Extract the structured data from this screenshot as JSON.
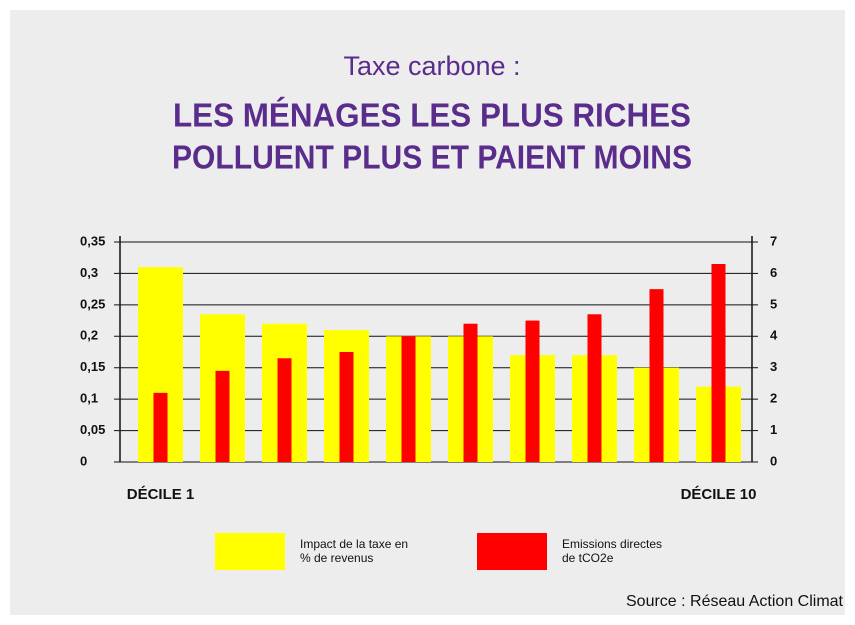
{
  "chart_data": {
    "type": "bar",
    "title": "Taxe carbone :",
    "subtitle": [
      "LES MÉNAGES LES PLUS RICHES",
      "POLLUENT PLUS ET PAIENT MOINS"
    ],
    "categories": [
      "DÉCILE 1",
      null,
      null,
      null,
      null,
      null,
      null,
      null,
      null,
      "DÉCILE 10"
    ],
    "series": [
      {
        "name": "Impact de la taxe en % de revenus",
        "color": "#ffff00",
        "values": [
          0.31,
          0.235,
          0.22,
          0.21,
          0.2,
          0.2,
          0.17,
          0.17,
          0.15,
          0.12
        ]
      },
      {
        "name": "Emissions directes de tCO2e",
        "color": "#ff0000",
        "axis": "y2",
        "values": [
          2.2,
          2.9,
          3.3,
          3.5,
          4,
          4.4,
          4.5,
          4.7,
          5.5,
          6.3
        ]
      }
    ],
    "ylim": [
      0,
      0.35
    ],
    "yticks": [
      0,
      {
        "value": 0.05,
        "label": "0,05"
      },
      {
        "value": 0.1,
        "label": "0,1"
      },
      {
        "value": 0.15,
        "label": "0,15"
      },
      {
        "value": 0.2,
        "label": "0,2"
      },
      {
        "value": 0.25,
        "label": "0,25"
      },
      {
        "value": 0.3,
        "label": "0,3"
      },
      {
        "value": 0.35,
        "label": "0,35"
      }
    ],
    "y2lim": [
      0,
      7
    ],
    "y2ticks": [
      0,
      1,
      2,
      3,
      4,
      5,
      6,
      7
    ],
    "grid": true,
    "source": "Source : Réseau Action Climat"
  }
}
